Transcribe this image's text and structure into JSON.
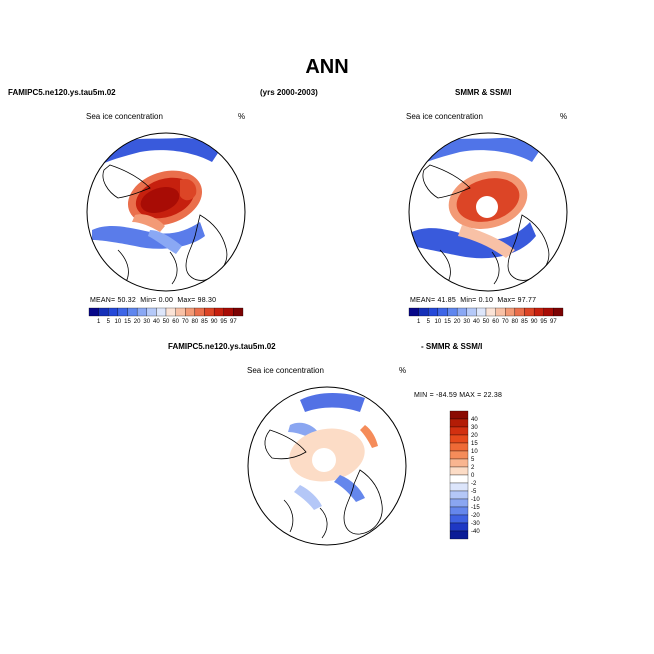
{
  "page": {
    "title": "ANN"
  },
  "headers": {
    "left": "FAMIPC5.ne120.ys.tau5m.02",
    "center": "(yrs 2000-2003)",
    "right": "SMMR & SSM/I",
    "bottom_left": "FAMIPC5.ne120.ys.tau5m.02",
    "bottom_right": "- SMMR & SSM/I"
  },
  "panels": {
    "model": {
      "label": "Sea ice concentration",
      "unit": "%",
      "stats": {
        "mean_label": "MEAN=",
        "mean": "50.32",
        "min_label": "Min=",
        "min": "0.00",
        "max_label": "Max=",
        "max": "98.30"
      }
    },
    "obs": {
      "label": "Sea ice concentration",
      "unit": "%",
      "stats": {
        "mean_label": "MEAN=",
        "mean": "41.85",
        "min_label": "Min=",
        "min": "0.10",
        "max_label": "Max=",
        "max": "97.77"
      }
    },
    "diff": {
      "label": "Sea ice concentration",
      "unit": "%",
      "minmax": "MIN = -84.59  MAX =  22.38"
    }
  },
  "colorbar_abs": {
    "ticks": [
      "1",
      "5",
      "10",
      "15",
      "20",
      "30",
      "40",
      "50",
      "60",
      "70",
      "80",
      "85",
      "90",
      "95",
      "97"
    ],
    "colors": [
      "#08088a",
      "#1530b8",
      "#2448d8",
      "#3d65e6",
      "#5f86ee",
      "#8aa8f4",
      "#b5c9f8",
      "#dde6fb",
      "#fbe3d6",
      "#f8c1a6",
      "#f39a76",
      "#ea6f4c",
      "#dc4526",
      "#c6200e",
      "#a80c05",
      "#7c0303"
    ]
  },
  "colorbar_diff": {
    "ticks": [
      "40",
      "30",
      "20",
      "15",
      "10",
      "5",
      "2",
      "0",
      "-2",
      "-5",
      "-10",
      "-15",
      "-20",
      "-30",
      "-40"
    ],
    "colors": [
      "#8a0a02",
      "#b31c06",
      "#d23010",
      "#e64a1c",
      "#ef6a36",
      "#f58c5a",
      "#f9b590",
      "#fcdcc6",
      "#ffffff",
      "#dce5fb",
      "#b4c7f7",
      "#8aa6f1",
      "#6587ec",
      "#3f62e2",
      "#1e38c4",
      "#0a1c96"
    ]
  }
}
